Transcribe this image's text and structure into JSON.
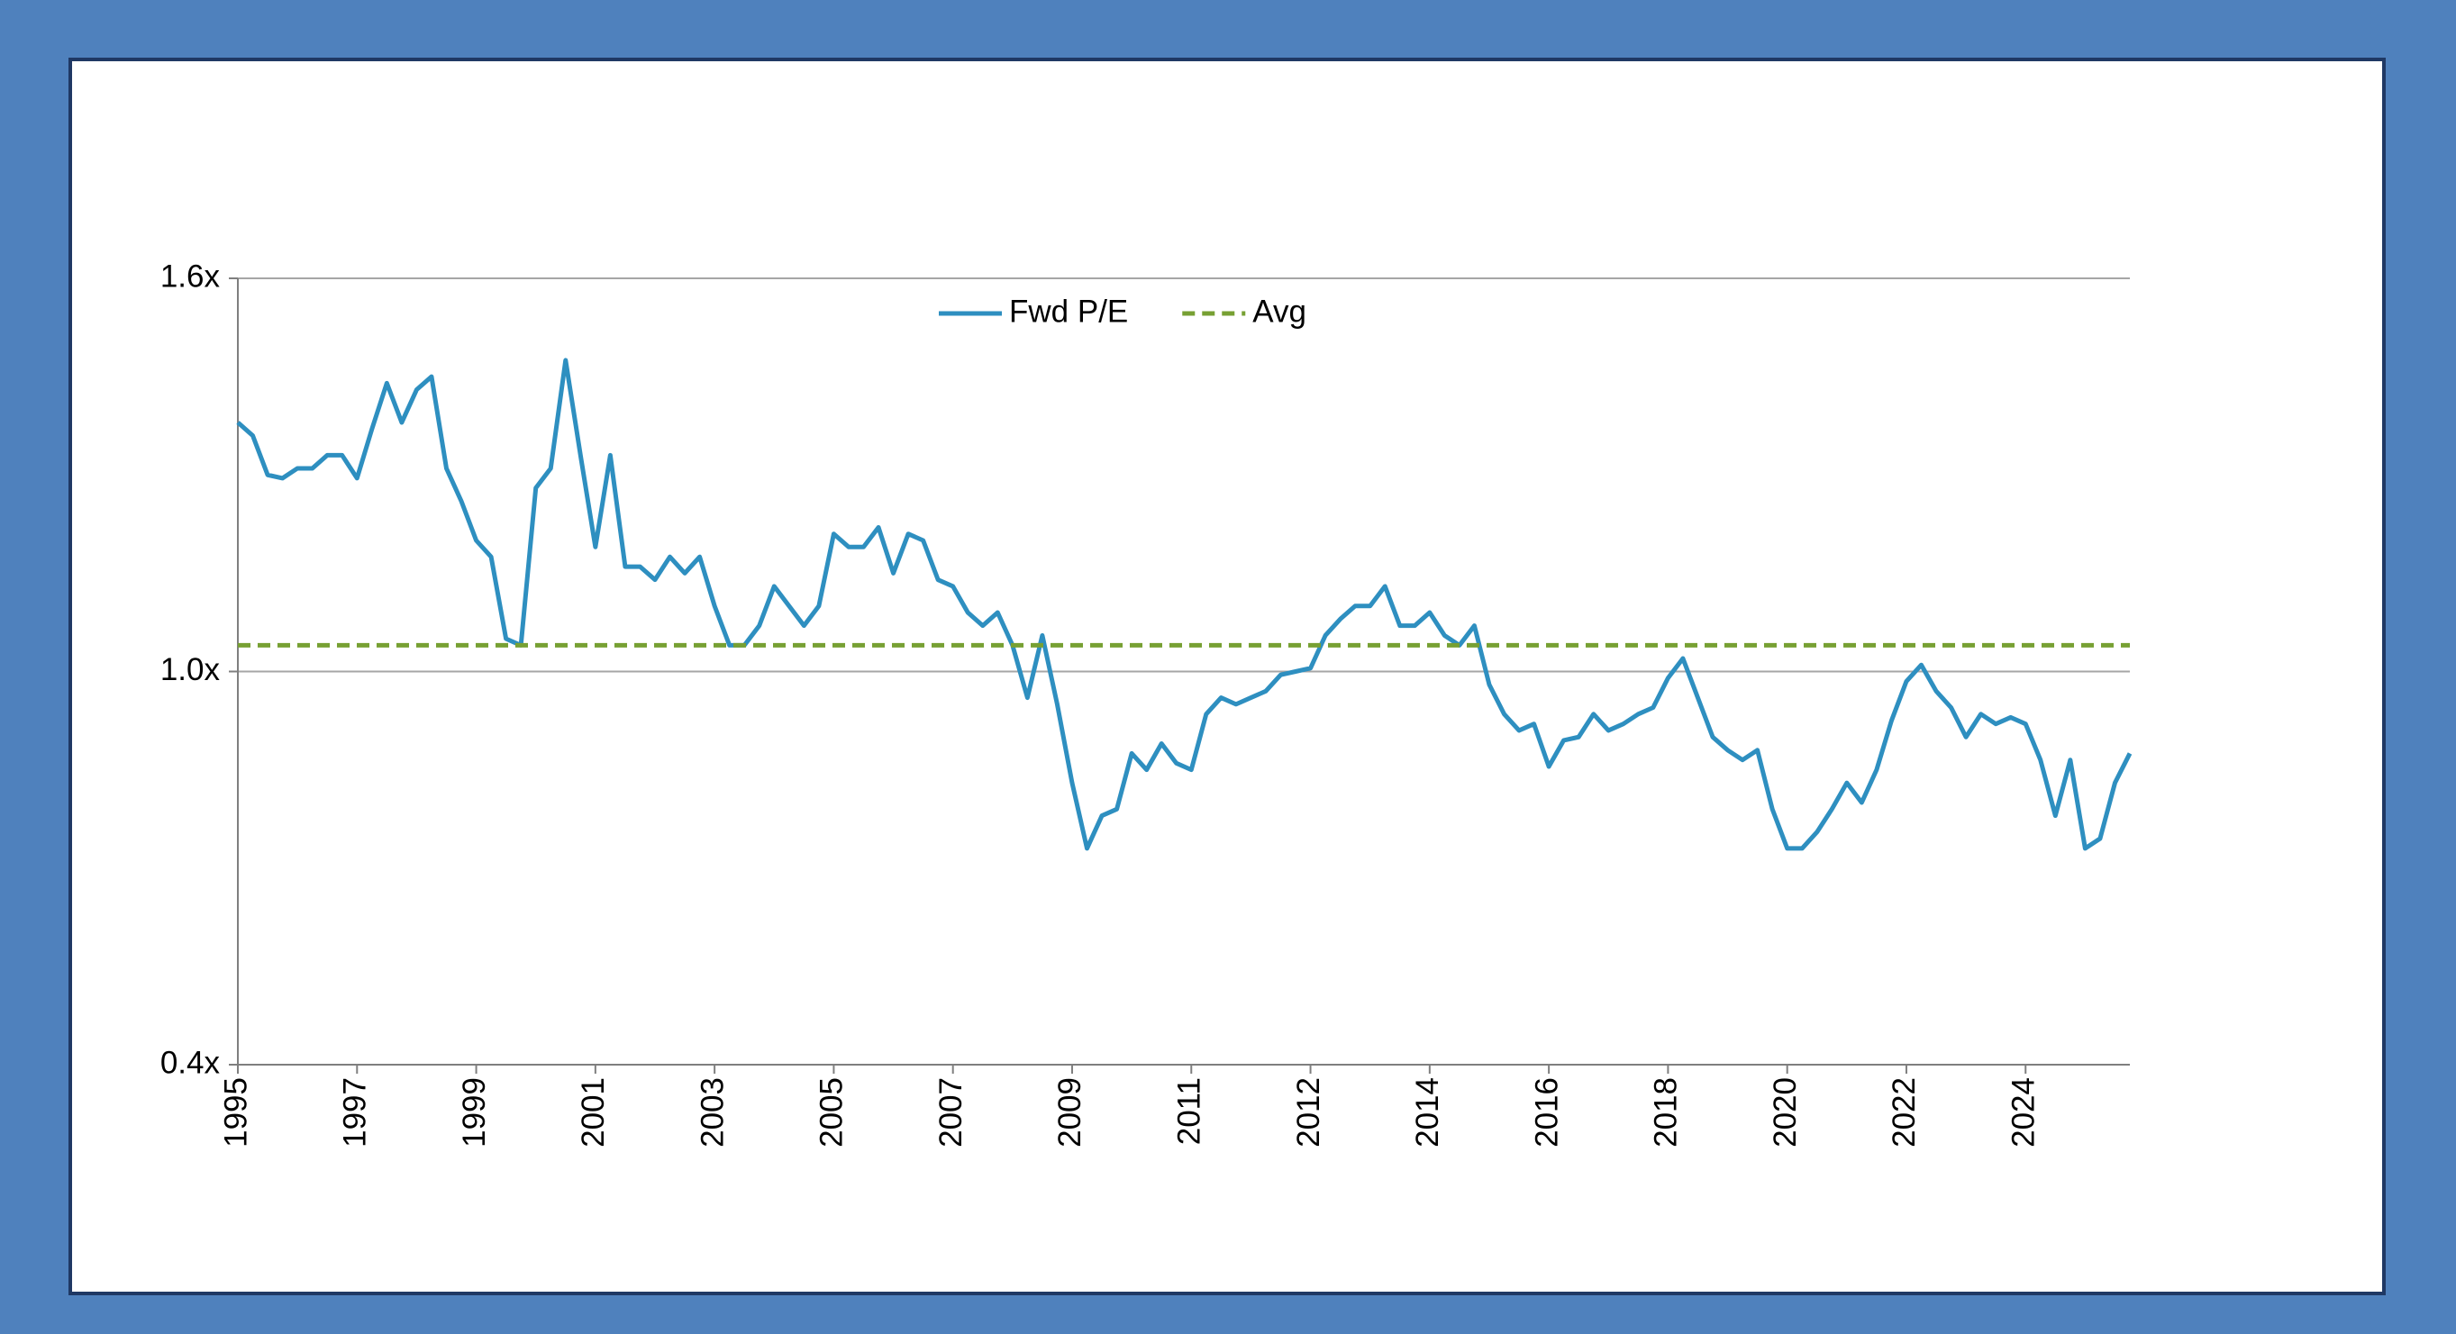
{
  "chart_data": {
    "type": "line",
    "categories": [
      "1995",
      null,
      null,
      null,
      null,
      null,
      null,
      null,
      "1997",
      null,
      null,
      null,
      null,
      null,
      null,
      null,
      "1999",
      null,
      null,
      null,
      null,
      null,
      null,
      null,
      "2001",
      null,
      null,
      null,
      null,
      null,
      null,
      null,
      "2003",
      null,
      null,
      null,
      null,
      null,
      null,
      null,
      "2005",
      null,
      null,
      null,
      null,
      null,
      null,
      null,
      "2007",
      null,
      null,
      null,
      null,
      null,
      null,
      null,
      "2009",
      null,
      null,
      null,
      null,
      null,
      null,
      null,
      "2011",
      null,
      null,
      null,
      null,
      null,
      null,
      null,
      "2012",
      null,
      null,
      null,
      null,
      null,
      null,
      null,
      "2014",
      null,
      null,
      null,
      null,
      null,
      null,
      null,
      "2016",
      null,
      null,
      null,
      null,
      null,
      null,
      null,
      "2018",
      null,
      null,
      null,
      null,
      null,
      null,
      null,
      "2020",
      null,
      null,
      null,
      null,
      null,
      null,
      null,
      "2022",
      null,
      null,
      null,
      null,
      null,
      null,
      null,
      "2024",
      null,
      null,
      null,
      null,
      null,
      null,
      null
    ],
    "series": [
      {
        "name": "Fwd P/E",
        "color": "#2e8fc0",
        "dash": false,
        "values": [
          1.38,
          1.36,
          1.3,
          1.295,
          1.31,
          1.31,
          1.33,
          1.33,
          1.295,
          1.37,
          1.44,
          1.38,
          1.43,
          1.45,
          1.31,
          1.26,
          1.2,
          1.175,
          1.05,
          1.04,
          1.28,
          1.31,
          1.475,
          1.33,
          1.19,
          1.33,
          1.16,
          1.16,
          1.14,
          1.175,
          1.15,
          1.175,
          1.1,
          1.04,
          1.04,
          1.07,
          1.13,
          1.1,
          1.07,
          1.1,
          1.21,
          1.19,
          1.19,
          1.22,
          1.15,
          1.21,
          1.2,
          1.14,
          1.13,
          1.09,
          1.07,
          1.09,
          1.04,
          0.96,
          1.055,
          0.95,
          0.83,
          0.73,
          0.78,
          0.79,
          0.875,
          0.85,
          0.89,
          0.86,
          0.85,
          0.935,
          0.96,
          0.95,
          0.96,
          0.97,
          0.995,
          1.0,
          1.005,
          1.055,
          1.08,
          1.1,
          1.1,
          1.13,
          1.07,
          1.07,
          1.09,
          1.055,
          1.04,
          1.07,
          0.98,
          0.935,
          0.91,
          0.92,
          0.855,
          0.895,
          0.9,
          0.935,
          0.91,
          0.92,
          0.935,
          0.945,
          0.99,
          1.02,
          0.96,
          0.9,
          0.88,
          0.865,
          0.88,
          0.79,
          0.73,
          0.73,
          0.755,
          0.79,
          0.83,
          0.8,
          0.85,
          0.925,
          0.985,
          1.01,
          0.97,
          0.945,
          0.9,
          0.935,
          0.92,
          0.93,
          0.92,
          0.865,
          0.78,
          0.865,
          0.73,
          0.745,
          0.83,
          0.875
        ]
      },
      {
        "name": "Avg",
        "color": "#77a033",
        "dash": true,
        "value": 1.04
      }
    ],
    "ylim": [
      0.4,
      1.6
    ],
    "yticks": [
      {
        "value": 0.4,
        "label": "0.4x"
      },
      {
        "value": 1.0,
        "label": "1.0x"
      },
      {
        "value": 1.6,
        "label": "1.6x"
      }
    ],
    "grid": true,
    "legend": "top"
  }
}
